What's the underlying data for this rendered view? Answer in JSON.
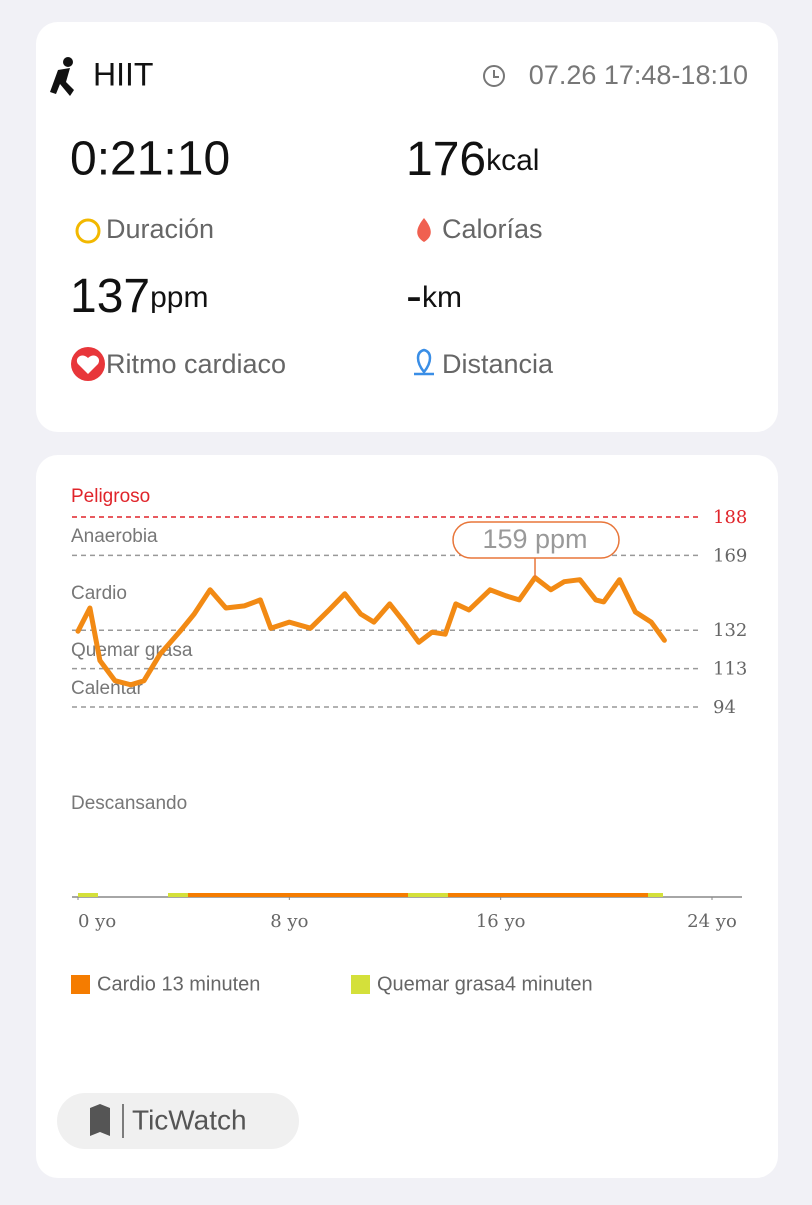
{
  "header": {
    "activity": "HIIT",
    "time": "07.26 17:48-18:10"
  },
  "stats": [
    {
      "value": "0:21:10",
      "label": "Duración"
    },
    {
      "value": "176",
      "unit": "kcal",
      "label": "Calorías"
    },
    {
      "value": "137",
      "unit": "ppm",
      "label": "Ritmo cardiaco"
    },
    {
      "value": "-",
      "unit": "km",
      "label": "Distancia"
    }
  ],
  "chart_data": {
    "type": "line",
    "zones": [
      {
        "name": "Peligroso",
        "color": "#e0242a"
      },
      {
        "name": "Anaerobia",
        "color": "#777777"
      },
      {
        "name": "Cardio",
        "color": "#777777"
      },
      {
        "name": "Quemar grasa",
        "color": "#777777"
      },
      {
        "name": "Calentar",
        "color": "#777777"
      },
      {
        "name": "Descansando",
        "color": "#777777"
      }
    ],
    "annotation": "159 ppm",
    "x": [
      0,
      0.45,
      0.83,
      1.4,
      2.0,
      2.5,
      3.1,
      3.9,
      4.4,
      5.0,
      5.6,
      6.3,
      6.9,
      7.3,
      8.0,
      8.8,
      9.5,
      10.1,
      10.7,
      11.2,
      11.8,
      12.4,
      12.9,
      13.4,
      13.9,
      14.3,
      14.8,
      15.6,
      16.2,
      16.7,
      17.3,
      17.9,
      18.4,
      19.0,
      19.6,
      19.9,
      20.5,
      21.1,
      21.7,
      22.2
    ],
    "values": [
      131.5,
      143,
      117,
      107,
      105,
      107,
      120,
      132,
      140,
      152,
      143,
      144,
      147,
      133,
      136,
      133,
      142,
      150,
      140,
      136,
      145,
      135,
      126,
      131,
      130,
      145,
      142,
      152,
      149,
      147,
      158,
      152,
      156,
      157,
      147,
      146,
      157,
      141,
      136,
      127
    ],
    "color": "#f28a14",
    "xlim": [
      0,
      24
    ],
    "xticks": [
      {
        "value": 0,
        "label": "0 yo"
      },
      {
        "value": 8,
        "label": "8 yo"
      },
      {
        "value": 16,
        "label": "16 yo"
      },
      {
        "value": 24,
        "label": "24 yo"
      }
    ],
    "ylim": [
      94,
      188
    ],
    "yticks": [
      188,
      169,
      132,
      113,
      94
    ],
    "legend": [
      {
        "name": "Cardio 13 minuten",
        "color": "#f57c00"
      },
      {
        "name": "Quemar grasa4 minuten",
        "color": "#d4e03a"
      }
    ]
  },
  "brand": "TicWatch"
}
